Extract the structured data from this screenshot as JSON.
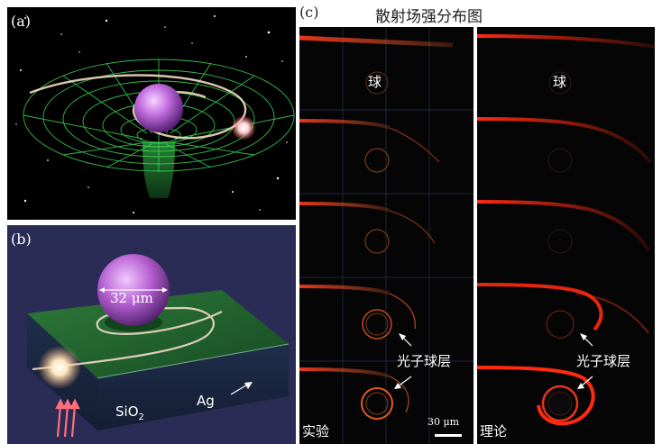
{
  "panel_a": {
    "label": "(a)"
  },
  "panel_b": {
    "label": "(b)",
    "sphere_size": "32 μm",
    "substrate_label": "SiO",
    "substrate_sub": "2",
    "metal_label": "Ag"
  },
  "panel_c": {
    "label": "(c)",
    "title": "散射场强分布图",
    "sphere_label_exp": "球",
    "sphere_label_theory": "球",
    "shell_label_exp": "光子球层",
    "shell_label_theory": "光子球层",
    "exp_label": "实验",
    "theory_label": "理论",
    "scale_bar": "30 μm"
  },
  "colors": {
    "grid_green": "#3fdc5a",
    "sphere_purple": "#b45fd0",
    "field_red": "#ff3a1e",
    "substrate_green": "#1f5a2a",
    "background_navy": "#2a2c55"
  }
}
